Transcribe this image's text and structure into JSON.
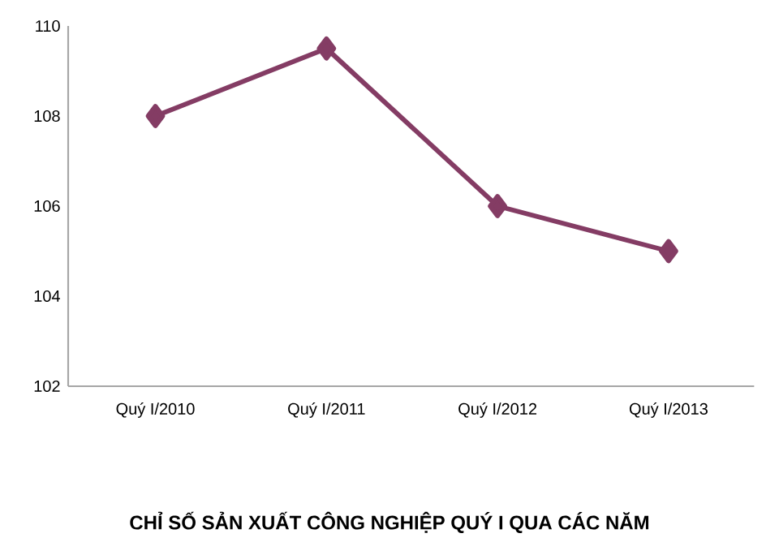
{
  "chart_data": {
    "type": "line",
    "title": "CHỈ SỐ SẢN XUẤT CÔNG NGHIỆP QUÝ I QUA CÁC NĂM",
    "categories": [
      "Quý I/2010",
      "Quý I/2011",
      "Quý I/2012",
      "Quý I/2013"
    ],
    "series": [
      {
        "color": "#843c64",
        "values": [
          108,
          109.5,
          106,
          105
        ]
      }
    ],
    "ylim": [
      102,
      110
    ],
    "yticks": [
      102,
      104,
      106,
      108,
      110
    ],
    "marker": "diamond",
    "line_style": "solid"
  }
}
